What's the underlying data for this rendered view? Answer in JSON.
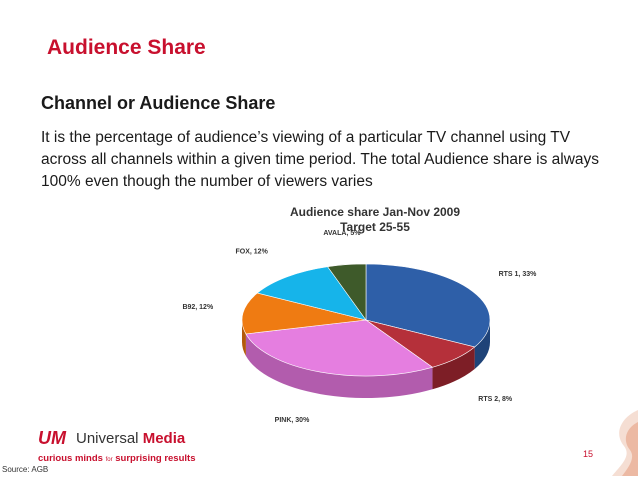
{
  "slide": {
    "title": "Audience Share",
    "subtitle": "Channel or Audience Share",
    "body": "It is the percentage of audience’s viewing of a particular TV channel using TV across all channels within a given time period. The total Audience share is always 100% even though the number of viewers varies",
    "page_number": "15",
    "source": "Source: AGB"
  },
  "footer": {
    "logo_mark": "UM",
    "logo_name_plain": "Universal",
    "logo_name_bold": "Media",
    "tagline_part1": "curious minds",
    "tagline_small": "for",
    "tagline_part2": "surprising results"
  },
  "chart_data": {
    "type": "pie",
    "title": "Audience share Jan-Nov 2009",
    "subtitle": "Target 25-55",
    "categories": [
      "RTS 1",
      "RTS 2",
      "PINK",
      "B92",
      "FOX",
      "AVALA"
    ],
    "values": [
      33,
      8,
      30,
      12,
      12,
      5
    ],
    "labels": [
      "RTS 1, 33%",
      "RTS 2, 8%",
      "PINK, 30%",
      "B92, 12%",
      "FOX, 12%",
      "AVALA, 5%"
    ],
    "colors": [
      "#2e5fa8",
      "#b5303a",
      "#e57ee0",
      "#ef7b12",
      "#16b4ea",
      "#3e5a2a"
    ],
    "side_colors": [
      "#1f4378",
      "#7d1e26",
      "#b25cad",
      "#b35a0b",
      "#0f86af",
      "#2a3e1d"
    ],
    "three_d": true
  }
}
